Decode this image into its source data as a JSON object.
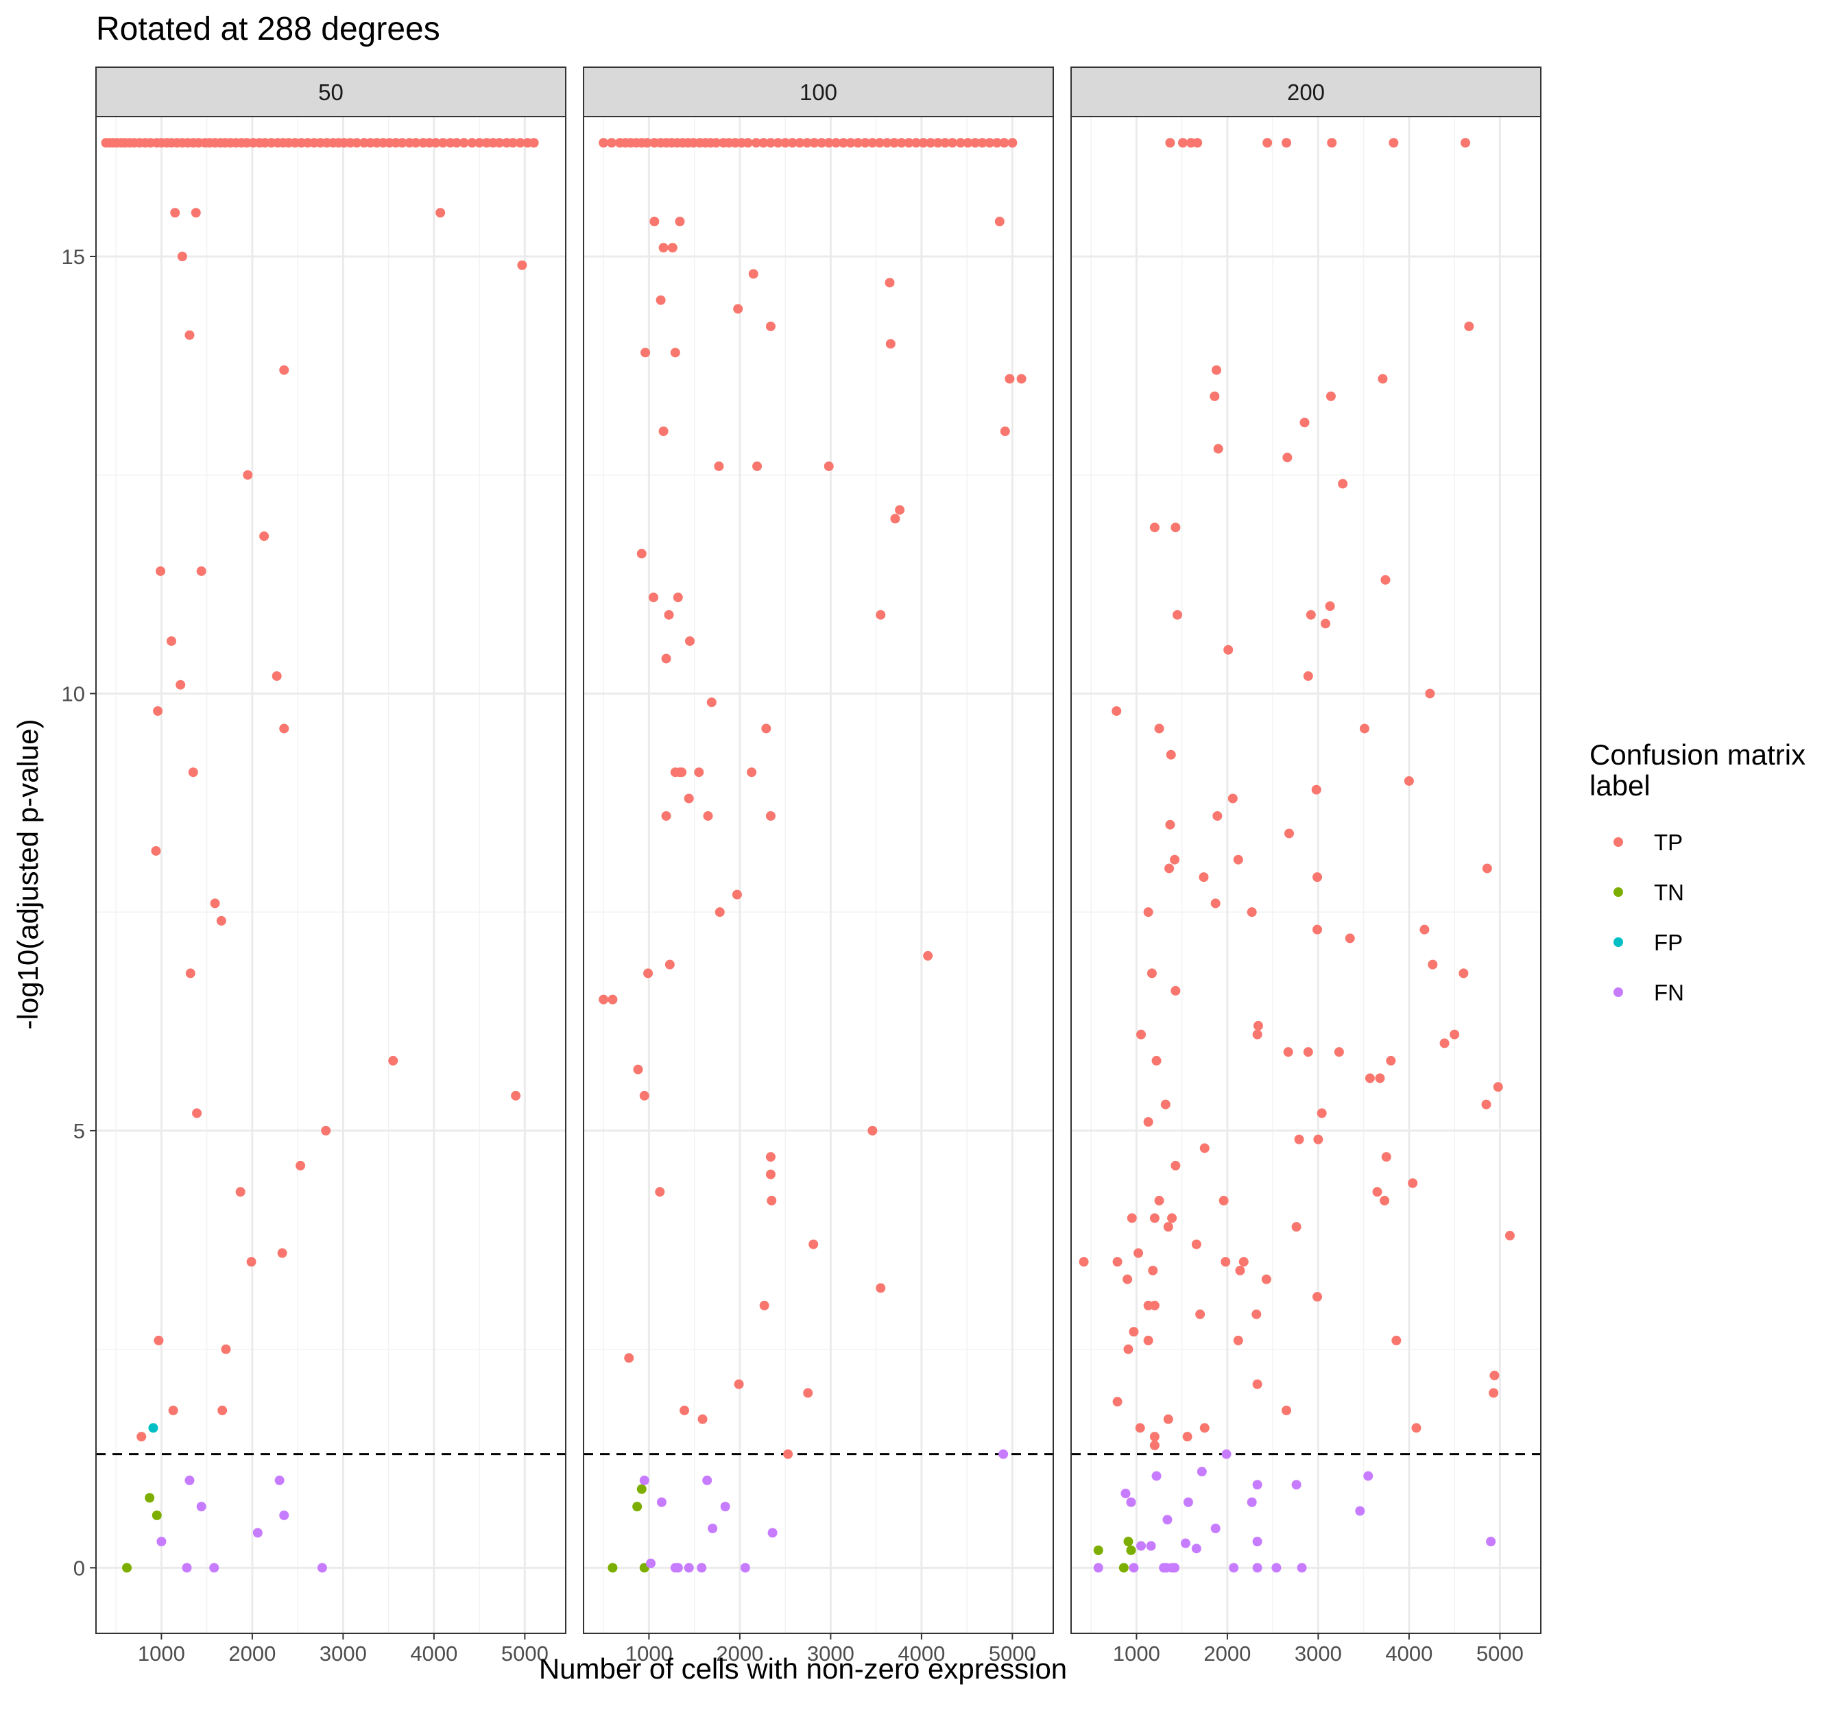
{
  "chart_data": {
    "type": "scatter",
    "title": "Rotated at 288 degrees",
    "xlabel": "Number of cells with non-zero expression",
    "ylabel": "-log10(adjusted p-value)",
    "xlim": [
      280,
      5450
    ],
    "ylim": [
      -0.75,
      16.6
    ],
    "x_ticks": [
      1000,
      2000,
      3000,
      4000,
      5000
    ],
    "x_tick_labels": [
      "1000",
      "2000",
      "3000",
      "4000",
      "5000"
    ],
    "y_ticks": [
      0,
      5,
      10,
      15
    ],
    "y_tick_labels": [
      "0",
      "5",
      "10",
      "15"
    ],
    "threshold_y": 1.3,
    "grid": true,
    "legend": {
      "title": "Confusion matrix label",
      "position": "right",
      "entries": [
        {
          "label": "TP",
          "color": "#F8766D"
        },
        {
          "label": "TN",
          "color": "#7CAE00"
        },
        {
          "label": "FP",
          "color": "#00BFC4"
        },
        {
          "label": "FN",
          "color": "#C77CFF"
        }
      ]
    },
    "panels": [
      {
        "label": "50",
        "series": [
          {
            "name": "TP",
            "x": [
              390,
              430,
              470,
              510,
              560,
              600,
              650,
              700,
              760,
              820,
              880,
              950,
              1000,
              1060,
              1110,
              1170,
              1230,
              1290,
              1350,
              1410,
              1480,
              1530,
              1590,
              1650,
              1700,
              1760,
              1820,
              1880,
              1940,
              2010,
              2080,
              2140,
              2210,
              2280,
              2340,
              2400,
              2470,
              2540,
              2610,
              2680,
              2750,
              2820,
              2890,
              2950,
              3010,
              3080,
              3150,
              3230,
              3300,
              3370,
              3440,
              3510,
              3580,
              3650,
              3730,
              3800,
              3880,
              3950,
              4020,
              4100,
              4180,
              4250,
              4330,
              4420,
              4500,
              4580,
              4650,
              4720,
              4800,
              4870,
              4950,
              5030,
              5100,
              1150,
              1380,
              4070,
              1230,
              4970,
              1310,
              2350,
              1950,
              2130,
              990,
              1440,
              1110,
              1210,
              2270,
              960,
              2350,
              1350,
              940,
              1590,
              1660,
              1320,
              3550,
              1390,
              4900,
              2810,
              2530,
              1870,
              2330,
              1990,
              970,
              1710,
              1130,
              1670,
              780
            ],
            "y": [
              16.3,
              16.3,
              16.3,
              16.3,
              16.3,
              16.3,
              16.3,
              16.3,
              16.3,
              16.3,
              16.3,
              16.3,
              16.3,
              16.3,
              16.3,
              16.3,
              16.3,
              16.3,
              16.3,
              16.3,
              16.3,
              16.3,
              16.3,
              16.3,
              16.3,
              16.3,
              16.3,
              16.3,
              16.3,
              16.3,
              16.3,
              16.3,
              16.3,
              16.3,
              16.3,
              16.3,
              16.3,
              16.3,
              16.3,
              16.3,
              16.3,
              16.3,
              16.3,
              16.3,
              16.3,
              16.3,
              16.3,
              16.3,
              16.3,
              16.3,
              16.3,
              16.3,
              16.3,
              16.3,
              16.3,
              16.3,
              16.3,
              16.3,
              16.3,
              16.3,
              16.3,
              16.3,
              16.3,
              16.3,
              16.3,
              16.3,
              16.3,
              16.3,
              16.3,
              16.3,
              16.3,
              16.3,
              16.3,
              15.5,
              15.5,
              15.5,
              15.0,
              14.9,
              14.1,
              13.7,
              12.5,
              11.8,
              11.4,
              11.4,
              10.6,
              10.1,
              10.2,
              9.8,
              9.6,
              9.1,
              8.2,
              7.6,
              7.4,
              6.8,
              5.8,
              5.2,
              5.4,
              5.0,
              4.6,
              4.3,
              3.6,
              3.5,
              2.6,
              2.5,
              1.8,
              1.8,
              1.5
            ]
          },
          {
            "name": "TN",
            "x": [
              620,
              870,
              950
            ],
            "y": [
              0.0,
              0.8,
              0.6
            ]
          },
          {
            "name": "FP",
            "x": [
              910
            ],
            "y": [
              1.6
            ]
          },
          {
            "name": "FN",
            "x": [
              1310,
              1000,
              1440,
              2300,
              2350,
              2060,
              1580,
              1280,
              2770
            ],
            "y": [
              1.0,
              0.3,
              0.7,
              1.0,
              0.6,
              0.4,
              0.0,
              0.0,
              0.0
            ]
          }
        ]
      },
      {
        "label": "100",
        "series": [
          {
            "name": "TP",
            "x": [
              500,
              590,
              680,
              740,
              800,
              860,
              920,
              980,
              1060,
              1130,
              1190,
              1250,
              1310,
              1370,
              1430,
              1490,
              1560,
              1620,
              1680,
              1740,
              1820,
              1880,
              1950,
              2020,
              2090,
              2180,
              2260,
              2340,
              2420,
              2500,
              2580,
              2660,
              2740,
              2820,
              2900,
              2980,
              3060,
              3140,
              3220,
              3300,
              3380,
              3460,
              3540,
              3620,
              3700,
              3780,
              3860,
              3940,
              4020,
              4100,
              4180,
              4260,
              4340,
              4430,
              4510,
              4590,
              4670,
              4750,
              4830,
              4910,
              5000,
              1060,
              1340,
              4860,
              1160,
              1260,
              2150,
              3650,
              1130,
              1980,
              2340,
              960,
              3660,
              1290,
              4970,
              5100,
              1160,
              4920,
              1770,
              2190,
              2980,
              3760,
              3710,
              920,
              1050,
              1320,
              3550,
              1220,
              1450,
              1190,
              1690,
              1340,
              1360,
              2290,
              1550,
              2130,
              1290,
              1440,
              1190,
              1650,
              2340,
              1970,
              1780,
              4070,
              1230,
              990,
              500,
              600,
              880,
              950,
              3460,
              2340,
              1120,
              2340,
              2350,
              2810,
              3550,
              2270,
              780,
              1990,
              2750,
              1390,
              1590,
              2530
            ],
            "y": [
              16.3,
              16.3,
              16.3,
              16.3,
              16.3,
              16.3,
              16.3,
              16.3,
              16.3,
              16.3,
              16.3,
              16.3,
              16.3,
              16.3,
              16.3,
              16.3,
              16.3,
              16.3,
              16.3,
              16.3,
              16.3,
              16.3,
              16.3,
              16.3,
              16.3,
              16.3,
              16.3,
              16.3,
              16.3,
              16.3,
              16.3,
              16.3,
              16.3,
              16.3,
              16.3,
              16.3,
              16.3,
              16.3,
              16.3,
              16.3,
              16.3,
              16.3,
              16.3,
              16.3,
              16.3,
              16.3,
              16.3,
              16.3,
              16.3,
              16.3,
              16.3,
              16.3,
              16.3,
              16.3,
              16.3,
              16.3,
              16.3,
              16.3,
              16.3,
              16.3,
              16.3,
              15.4,
              15.4,
              15.4,
              15.1,
              15.1,
              14.8,
              14.7,
              14.5,
              14.4,
              14.2,
              13.9,
              14.0,
              13.9,
              13.6,
              13.6,
              13.0,
              13.0,
              12.6,
              12.6,
              12.6,
              12.1,
              12.0,
              11.6,
              11.1,
              11.1,
              10.9,
              10.9,
              10.6,
              10.4,
              9.9,
              9.1,
              9.1,
              9.6,
              9.1,
              9.1,
              9.1,
              8.8,
              8.6,
              8.6,
              8.6,
              7.7,
              7.5,
              7.0,
              6.9,
              6.8,
              6.5,
              6.5,
              5.7,
              5.4,
              5.0,
              4.7,
              4.3,
              4.5,
              4.2,
              3.7,
              3.2,
              3.0,
              2.4,
              2.1,
              2.0,
              1.8,
              1.7,
              1.3
            ]
          },
          {
            "name": "TN",
            "x": [
              920,
              870,
              600,
              950
            ],
            "y": [
              0.9,
              0.7,
              0.0,
              0.0
            ]
          },
          {
            "name": "FN",
            "x": [
              4900,
              950,
              1640,
              1140,
              1840,
              1700,
              2360,
              1020,
              1290,
              1320,
              1440,
              1580,
              2060
            ],
            "y": [
              1.3,
              1.0,
              1.0,
              0.75,
              0.7,
              0.45,
              0.4,
              0.05,
              0.0,
              0.0,
              0.0,
              0.0,
              0.0
            ]
          }
        ]
      },
      {
        "label": "200",
        "series": [
          {
            "name": "TP",
            "x": [
              1370,
              1510,
              1600,
              1670,
              2440,
              2650,
              3150,
              3830,
              4620,
              4660,
              1880,
              3710,
              1860,
              3140,
              2850,
              1900,
              2660,
              3270,
              1200,
              1430,
              3740,
              3130,
              3080,
              1450,
              2920,
              2010,
              2890,
              4230,
              780,
              1250,
              3510,
              1380,
              2980,
              4000,
              2060,
              1890,
              1370,
              2120,
              2680,
              1420,
              4860,
              1360,
              1740,
              2990,
              1870,
              1130,
              2270,
              2990,
              4170,
              3350,
              4260,
              1170,
              4600,
              1430,
              1050,
              2340,
              2330,
              4390,
              4500,
              2670,
              2890,
              3230,
              1220,
              3570,
              3680,
              3800,
              4980,
              1320,
              4850,
              1130,
              3040,
              2790,
              3000,
              1750,
              3750,
              1430,
              4040,
              3650,
              3730,
              1250,
              1960,
              1200,
              950,
              1390,
              1350,
              5110,
              2760,
              1660,
              1020,
              420,
              790,
              1180,
              1980,
              2180,
              2140,
              900,
              2430,
              2990,
              1130,
              1200,
              1700,
              2320,
              3860,
              970,
              2120,
              1130,
              910,
              4940,
              2330,
              4930,
              790,
              2650,
              1350,
              1040,
              4080,
              1750,
              1200,
              1200,
              1560
            ],
            "y": [
              16.3,
              16.3,
              16.3,
              16.3,
              16.3,
              16.3,
              16.3,
              16.3,
              16.3,
              14.2,
              13.7,
              13.6,
              13.4,
              13.4,
              13.1,
              12.8,
              12.7,
              12.4,
              11.9,
              11.9,
              11.3,
              11.0,
              10.8,
              10.9,
              10.9,
              10.5,
              10.2,
              10.0,
              9.8,
              9.6,
              9.6,
              9.3,
              8.9,
              9.0,
              8.8,
              8.6,
              8.5,
              8.1,
              8.4,
              8.1,
              8.0,
              8.0,
              7.9,
              7.9,
              7.6,
              7.5,
              7.5,
              7.3,
              7.3,
              7.2,
              6.9,
              6.8,
              6.8,
              6.6,
              6.1,
              6.2,
              6.1,
              6.0,
              6.1,
              5.9,
              5.9,
              5.9,
              5.8,
              5.6,
              5.6,
              5.8,
              5.5,
              5.3,
              5.3,
              5.1,
              5.2,
              4.9,
              4.9,
              4.8,
              4.7,
              4.6,
              4.4,
              4.3,
              4.2,
              4.2,
              4.2,
              4.0,
              4.0,
              4.0,
              3.9,
              3.8,
              3.9,
              3.7,
              3.6,
              3.5,
              3.5,
              3.4,
              3.5,
              3.5,
              3.4,
              3.3,
              3.3,
              3.1,
              3.0,
              3.0,
              2.9,
              2.9,
              2.6,
              2.7,
              2.6,
              2.6,
              2.5,
              2.2,
              2.1,
              2.0,
              1.9,
              1.8,
              1.7,
              1.6,
              1.6,
              1.6,
              1.5,
              1.4,
              1.5
            ]
          },
          {
            "name": "TN",
            "x": [
              580,
              910,
              940,
              860
            ],
            "y": [
              0.2,
              0.3,
              0.2,
              0.0
            ]
          },
          {
            "name": "FN",
            "x": [
              1990,
              1220,
              3550,
              1720,
              2760,
              2330,
              880,
              3460,
              4900,
              940,
              2270,
              1570,
              1340,
              1870,
              2330,
              1160,
              1050,
              1540,
              1660,
              580,
              970,
              1300,
              1330,
              1390,
              1420,
              2070,
              2330,
              2540,
              2820
            ],
            "y": [
              1.3,
              1.05,
              1.05,
              1.1,
              0.95,
              0.95,
              0.85,
              0.65,
              0.3,
              0.75,
              0.75,
              0.75,
              0.55,
              0.45,
              0.3,
              0.25,
              0.25,
              0.28,
              0.22,
              0.0,
              0.0,
              0.0,
              0.0,
              0.0,
              0.0,
              0.0,
              0.0,
              0.0,
              0.0
            ]
          }
        ]
      }
    ]
  }
}
